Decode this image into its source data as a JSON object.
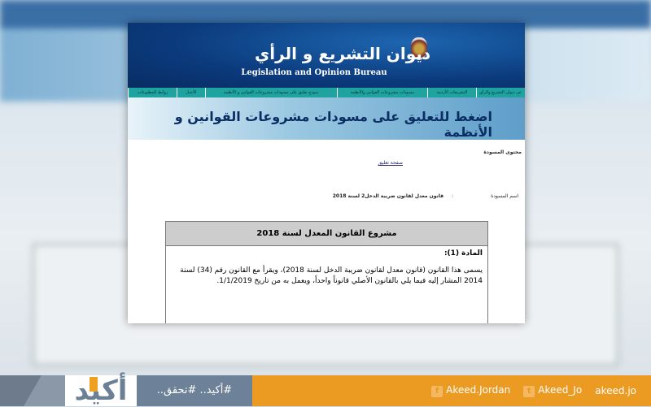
{
  "site": {
    "title_ar": "ديوان التشريع و الرأي",
    "title_en": "Legislation and Opinion Bureau"
  },
  "nav": [
    "عن ديوان التشريع والرأي",
    "التشريعات الأردنية",
    "مسودات مشروعات القوانين والأنظمة",
    "نموذج تعليق على مسودات مشروعات القوانين و الأنظمة",
    "الأخبار",
    "روابط للمطبوعات"
  ],
  "banner": "اضغط للتعليق على مسودات مشروعات القوانين و الأنظمة",
  "content": {
    "section_label": "محتوى المسودة",
    "comment_link": "صفحة تعليق",
    "draft_name_label": "اسم المسودة",
    "colon": ":",
    "draft_name": "قانون معدل لقانون ضريبة الدخل2 لسنة 2018"
  },
  "doc": {
    "title": "مشروع القانون المعدل لسنة 2018",
    "article": "المادة (1):",
    "text": "يسمى هذا القانون (قانون معدل لقانون ضريبة الدخل لسنة 2018)، ويقرأ مع القانون رقم (34) لسنة 2014 المشار إليه فيما يلي بالقانون الأصلي قانوناً واحداً، ويعمل به من تاريخ 1/1/2019."
  },
  "footer": {
    "logo": "أكيد",
    "slogan": "#أكيد.. #تحقق..",
    "facebook": "Akeed.Jordan",
    "twitter": "Akeed_Jo",
    "site": "akeed.jo",
    "facebook_icon": "f",
    "twitter_icon": "t"
  },
  "colors": {
    "header": "#0b3a7c",
    "nav": "#1fa3a0",
    "footer_orange": "#eb9a22"
  }
}
